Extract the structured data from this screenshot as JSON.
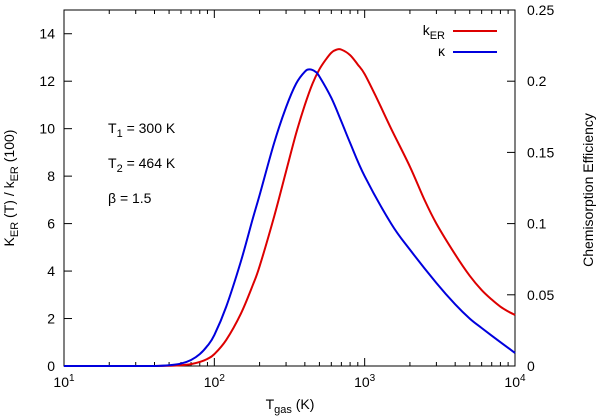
{
  "chart_data": {
    "type": "line",
    "x_scale": "log",
    "x_axis": {
      "label_main": "T",
      "label_sub": "gas",
      "label_suffix": " (K)",
      "range": [
        10,
        10000
      ],
      "ticks": [
        {
          "value": 10,
          "base": "10",
          "exp": "1"
        },
        {
          "value": 100,
          "base": "10",
          "exp": "2"
        },
        {
          "value": 1000,
          "base": "10",
          "exp": "3"
        },
        {
          "value": 10000,
          "base": "10",
          "exp": "4"
        }
      ]
    },
    "y_left": {
      "label_parts": [
        {
          "text": "K",
          "sub": false
        },
        {
          "text": "ER",
          "sub": true
        },
        {
          "text": " (T) / k",
          "sub": false
        },
        {
          "text": "ER",
          "sub": true
        },
        {
          "text": " (100)",
          "sub": false
        }
      ],
      "range": [
        0,
        15
      ],
      "ticks": [
        "0",
        "2",
        "4",
        "6",
        "8",
        "10",
        "12",
        "14"
      ]
    },
    "y_right": {
      "label": "Chemisorption Efficiency",
      "range": [
        0,
        0.25
      ],
      "ticks": [
        "0",
        "0.05",
        "0.1",
        "0.15",
        "0.2",
        "0.25"
      ]
    },
    "series": [
      {
        "name": "k_ER",
        "legend_main": "k",
        "legend_sub": "ER",
        "color": "#dd0000",
        "axis": "left",
        "points": [
          [
            10,
            0
          ],
          [
            20,
            0
          ],
          [
            30,
            0
          ],
          [
            40,
            0
          ],
          [
            50,
            0.01
          ],
          [
            60,
            0.03
          ],
          [
            70,
            0.08
          ],
          [
            80,
            0.17
          ],
          [
            90,
            0.3
          ],
          [
            100,
            0.5
          ],
          [
            120,
            1.1
          ],
          [
            150,
            2.2
          ],
          [
            180,
            3.4
          ],
          [
            200,
            4.2
          ],
          [
            250,
            6.3
          ],
          [
            300,
            8.2
          ],
          [
            350,
            9.8
          ],
          [
            400,
            11.0
          ],
          [
            450,
            11.9
          ],
          [
            500,
            12.5
          ],
          [
            550,
            12.9
          ],
          [
            600,
            13.2
          ],
          [
            650,
            13.33
          ],
          [
            700,
            13.33
          ],
          [
            800,
            13.1
          ],
          [
            900,
            12.7
          ],
          [
            1000,
            12.3
          ],
          [
            1200,
            11.3
          ],
          [
            1500,
            10.0
          ],
          [
            2000,
            8.4
          ],
          [
            2500,
            7.0
          ],
          [
            3000,
            6.0
          ],
          [
            4000,
            4.7
          ],
          [
            5000,
            3.8
          ],
          [
            6000,
            3.2
          ],
          [
            7000,
            2.8
          ],
          [
            8000,
            2.5
          ],
          [
            9000,
            2.3
          ],
          [
            10000,
            2.15
          ]
        ]
      },
      {
        "name": "kappa",
        "legend_main": "κ",
        "legend_sub": "",
        "color": "#0000dd",
        "axis": "right",
        "points": [
          [
            10,
            0
          ],
          [
            30,
            0
          ],
          [
            40,
            0
          ],
          [
            50,
            0.0005
          ],
          [
            60,
            0.0017
          ],
          [
            70,
            0.0042
          ],
          [
            80,
            0.0083
          ],
          [
            90,
            0.0142
          ],
          [
            100,
            0.0217
          ],
          [
            120,
            0.0417
          ],
          [
            150,
            0.0733
          ],
          [
            180,
            0.1033
          ],
          [
            200,
            0.12
          ],
          [
            250,
            0.1567
          ],
          [
            300,
            0.1817
          ],
          [
            350,
            0.1983
          ],
          [
            400,
            0.2067
          ],
          [
            430,
            0.2083
          ],
          [
            470,
            0.2067
          ],
          [
            500,
            0.2033
          ],
          [
            600,
            0.1883
          ],
          [
            700,
            0.1717
          ],
          [
            800,
            0.1567
          ],
          [
            1000,
            0.1333
          ],
          [
            1500,
            0.1
          ],
          [
            2000,
            0.0817
          ],
          [
            3000,
            0.0583
          ],
          [
            4000,
            0.0433
          ],
          [
            5000,
            0.0333
          ],
          [
            6000,
            0.0267
          ],
          [
            8000,
            0.0167
          ],
          [
            10000,
            0.0092
          ]
        ]
      }
    ],
    "annotations": [
      {
        "main": "T",
        "sub": "1",
        "rest": " = 300 K"
      },
      {
        "main": "T",
        "sub": "2",
        "rest": " = 464 K"
      },
      {
        "main": "β = 1.5",
        "sub": "",
        "rest": ""
      }
    ],
    "legend_position": "top-right",
    "grid": false
  }
}
